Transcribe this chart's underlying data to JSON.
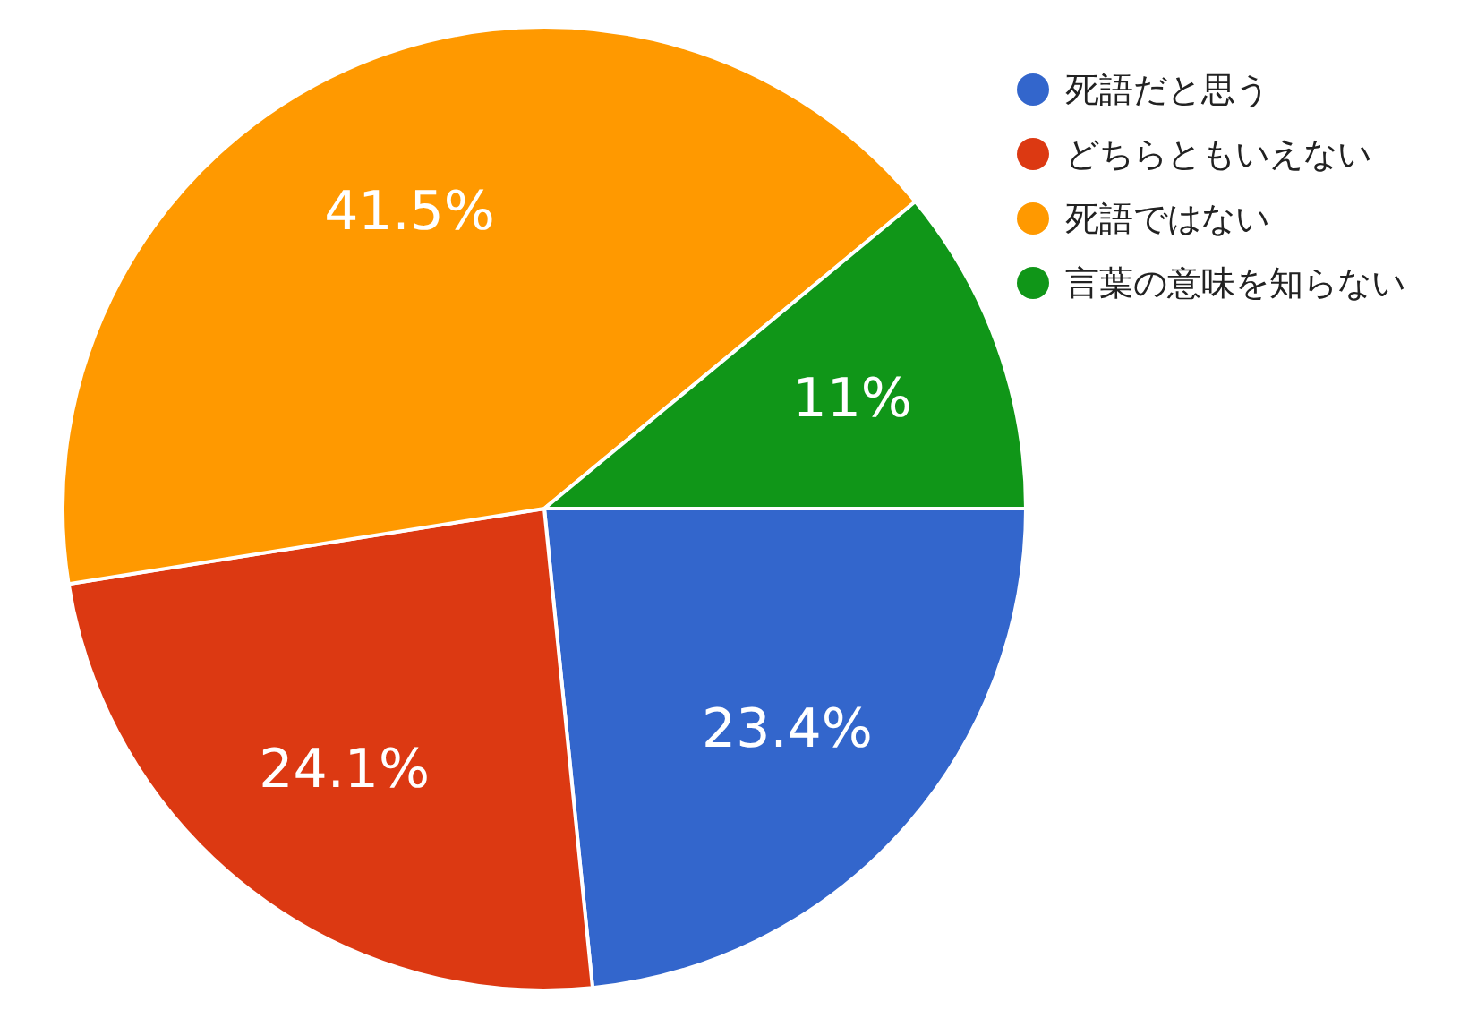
{
  "chart_data": {
    "type": "pie",
    "categories": [
      "死語だと思う",
      "どちらともいえない",
      "死語ではない",
      "言葉の意味を知らない"
    ],
    "values": [
      23.4,
      24.1,
      41.5,
      11
    ],
    "colors": [
      "#3366cc",
      "#dc3912",
      "#ff9900",
      "#109618"
    ],
    "value_labels": [
      "23.4%",
      "24.1%",
      "41.5%",
      "11%"
    ],
    "legend": "right"
  }
}
